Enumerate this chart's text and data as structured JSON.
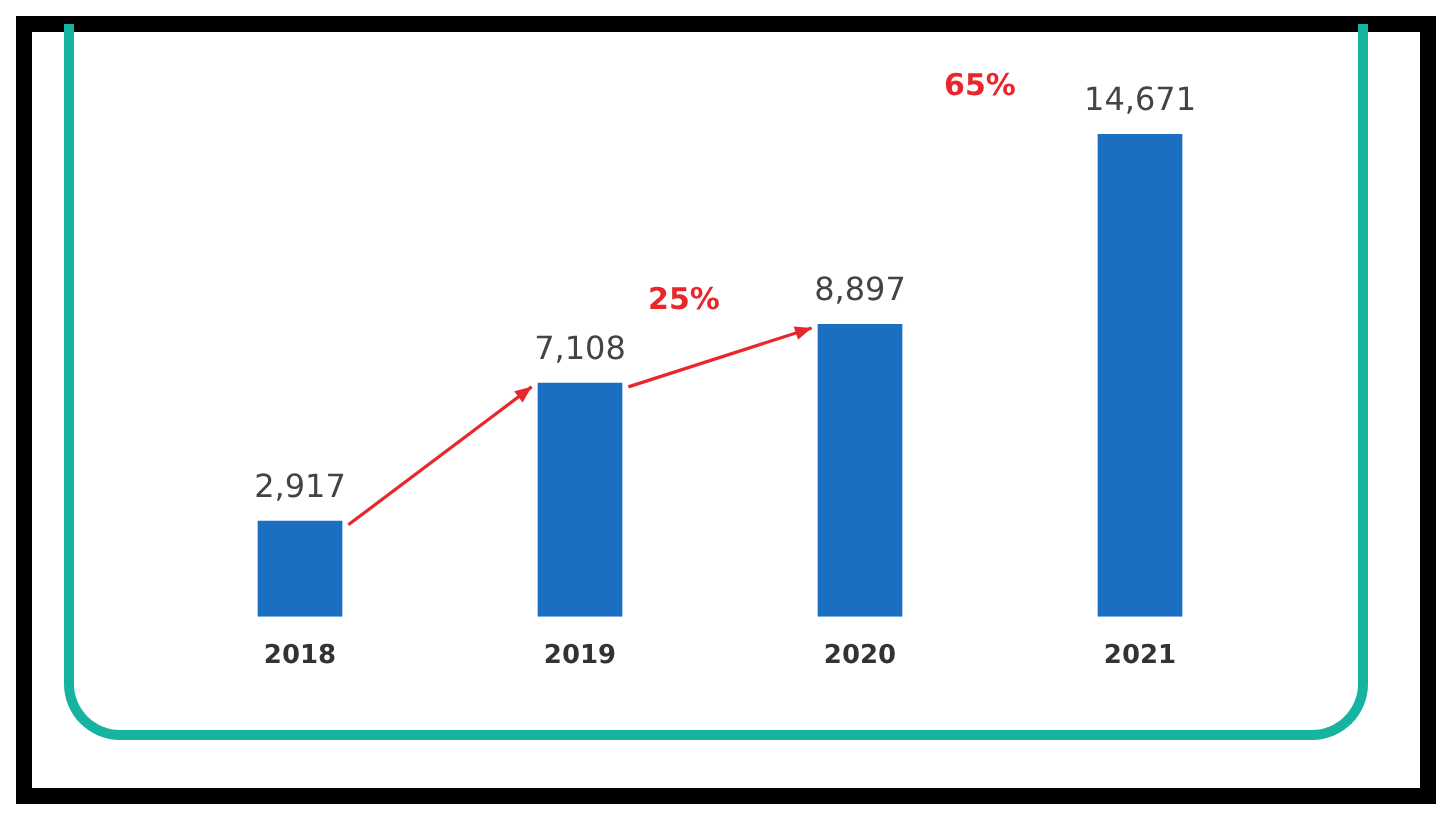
{
  "chart_data": {
    "type": "bar",
    "categories": [
      "2018",
      "2019",
      "2020",
      "2021"
    ],
    "values": [
      2917,
      7108,
      8897,
      14671
    ],
    "color": "#1a6fc0",
    "value_labels": [
      "2,917",
      "7,108",
      "8,897",
      "14,671"
    ],
    "annotations": [
      "25%",
      "65%"
    ],
    "grid": false,
    "legend": false
  }
}
